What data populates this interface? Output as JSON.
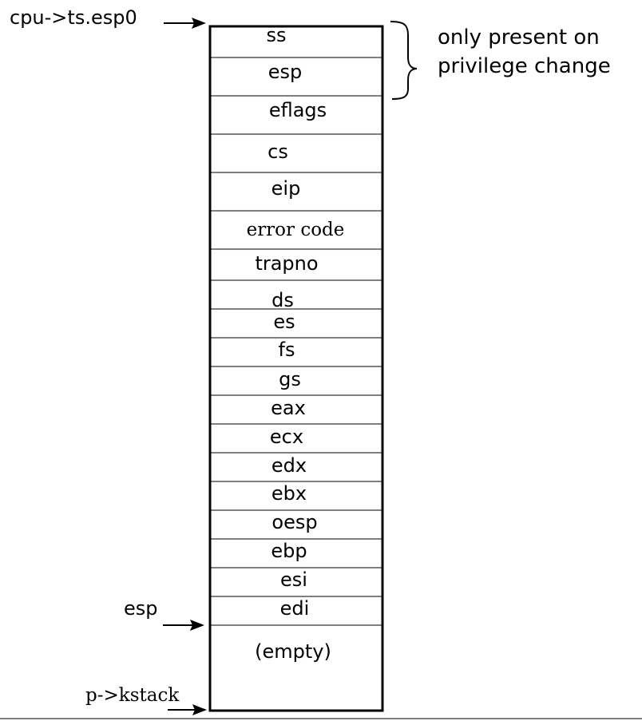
{
  "stack_cells": [
    {
      "label": "ss",
      "font": "sans"
    },
    {
      "label": "esp",
      "font": "sans"
    },
    {
      "label": "eflags",
      "font": "sans"
    },
    {
      "label": "cs",
      "font": "sans"
    },
    {
      "label": "eip",
      "font": "sans"
    },
    {
      "label": "error code",
      "font": "serif"
    },
    {
      "label": "trapno",
      "font": "sans"
    },
    {
      "label": "ds",
      "font": "sans"
    },
    {
      "label": "es",
      "font": "sans"
    },
    {
      "label": "fs",
      "font": "sans"
    },
    {
      "label": "gs",
      "font": "sans"
    },
    {
      "label": "eax",
      "font": "sans"
    },
    {
      "label": "ecx",
      "font": "sans"
    },
    {
      "label": "edx",
      "font": "sans"
    },
    {
      "label": "ebx",
      "font": "sans"
    },
    {
      "label": "oesp",
      "font": "sans"
    },
    {
      "label": "ebp",
      "font": "sans"
    },
    {
      "label": "esi",
      "font": "sans"
    },
    {
      "label": "edi",
      "font": "sans"
    },
    {
      "label": "(empty)",
      "font": "sans"
    }
  ],
  "pointers": {
    "top": "cpu->ts.esp0",
    "esp": "esp",
    "bottom": "p->kstack"
  },
  "annotation": {
    "line1": "only present on",
    "line2": "privilege change"
  }
}
